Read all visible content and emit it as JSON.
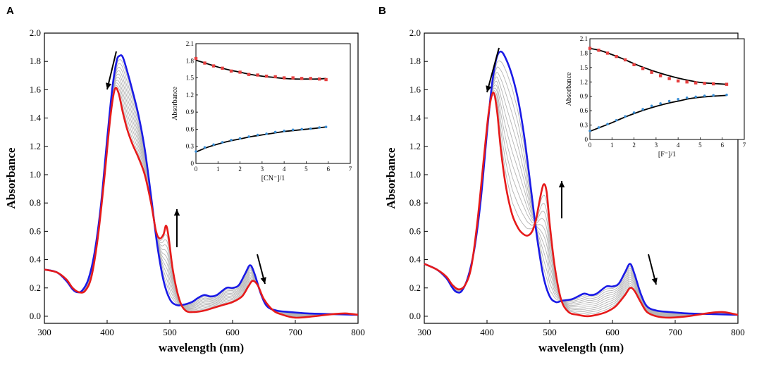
{
  "chart_data": [
    {
      "panel_label": "A",
      "type": "line",
      "xlabel": "wavelength (nm)",
      "ylabel": "Absorbance",
      "xlim": [
        300,
        800
      ],
      "ylim": [
        -0.05,
        2.0
      ],
      "xticks": [
        "300",
        "400",
        "500",
        "600",
        "700",
        "800"
      ],
      "yticks": [
        "0.0",
        "0.2",
        "0.4",
        "0.6",
        "0.8",
        "1.0",
        "1.2",
        "1.4",
        "1.6",
        "1.8",
        "2.0"
      ],
      "colors": {
        "start": "#1a1ae6",
        "end": "#e61a1a",
        "intermediate": "#b4b4b4"
      },
      "intermediate_count": 10,
      "series": [
        {
          "name": "start",
          "x": [
            300,
            320,
            335,
            345,
            352,
            360,
            370,
            380,
            390,
            400,
            408,
            415,
            420,
            425,
            432,
            440,
            450,
            460,
            470,
            480,
            490,
            500,
            510,
            520,
            535,
            545,
            555,
            565,
            575,
            590,
            600,
            610,
            620,
            628,
            635,
            645,
            655,
            670,
            690,
            720,
            760,
            800
          ],
          "y": [
            0.33,
            0.31,
            0.25,
            0.19,
            0.17,
            0.18,
            0.26,
            0.45,
            0.78,
            1.25,
            1.6,
            1.8,
            1.84,
            1.83,
            1.73,
            1.6,
            1.42,
            1.18,
            0.85,
            0.5,
            0.25,
            0.12,
            0.08,
            0.08,
            0.1,
            0.13,
            0.15,
            0.14,
            0.15,
            0.2,
            0.2,
            0.22,
            0.3,
            0.36,
            0.3,
            0.16,
            0.07,
            0.04,
            0.03,
            0.02,
            0.015,
            0.01
          ]
        },
        {
          "name": "end",
          "x": [
            300,
            320,
            335,
            345,
            355,
            365,
            375,
            385,
            395,
            405,
            412,
            418,
            425,
            432,
            440,
            450,
            460,
            470,
            478,
            484,
            490,
            494,
            498,
            505,
            515,
            525,
            540,
            555,
            570,
            585,
            600,
            615,
            625,
            632,
            640,
            650,
            665,
            680,
            700,
            730,
            760,
            780,
            800
          ],
          "y": [
            0.33,
            0.31,
            0.26,
            0.2,
            0.17,
            0.18,
            0.28,
            0.55,
            0.95,
            1.4,
            1.6,
            1.58,
            1.44,
            1.32,
            1.22,
            1.12,
            1.0,
            0.8,
            0.6,
            0.55,
            0.58,
            0.64,
            0.56,
            0.32,
            0.12,
            0.04,
            0.03,
            0.04,
            0.06,
            0.08,
            0.1,
            0.14,
            0.21,
            0.25,
            0.22,
            0.12,
            0.04,
            0.01,
            -0.01,
            0.0,
            0.015,
            0.02,
            0.01
          ]
        }
      ],
      "annotations": [
        {
          "label": "decrease",
          "at_x": 415,
          "at_y": 1.63
        },
        {
          "label": "increase",
          "at_x": 505,
          "at_y": 0.54
        },
        {
          "label": "decrease",
          "at_x": 638,
          "at_y": 0.39
        }
      ],
      "inset": {
        "type": "scatter",
        "xlabel": "[CN⁻]/1",
        "ylabel": "Absorbance",
        "xlim": [
          0,
          7
        ],
        "ylim": [
          0,
          2.1
        ],
        "xticks": [
          "0",
          "1",
          "2",
          "3",
          "4",
          "5",
          "6",
          "7"
        ],
        "yticks": [
          "0",
          "0.3",
          "0.6",
          "0.9",
          "1.2",
          "1.5",
          "1.8",
          "2.1"
        ],
        "series": [
          {
            "name": "decay",
            "color": "#e64040",
            "x": [
              0,
              0.4,
              0.8,
              1.2,
              1.6,
              2.0,
              2.4,
              2.8,
              3.2,
              3.6,
              4.0,
              4.4,
              4.8,
              5.2,
              5.6,
              5.9
            ],
            "y": [
              1.84,
              1.76,
              1.71,
              1.67,
              1.62,
              1.6,
              1.56,
              1.55,
              1.53,
              1.52,
              1.5,
              1.5,
              1.49,
              1.49,
              1.48,
              1.47
            ],
            "fit": {
              "x": [
                0,
                0.5,
                1,
                1.5,
                2,
                2.5,
                3,
                3.5,
                4,
                4.5,
                5,
                5.5,
                5.9
              ],
              "y": [
                1.81,
                1.75,
                1.69,
                1.64,
                1.6,
                1.56,
                1.53,
                1.51,
                1.49,
                1.48,
                1.48,
                1.48,
                1.49
              ]
            }
          },
          {
            "name": "growth",
            "color": "#3a8fd6",
            "x": [
              0,
              0.4,
              0.8,
              1.2,
              1.6,
              2.0,
              2.4,
              2.8,
              3.2,
              3.6,
              4.0,
              4.4,
              4.8,
              5.2,
              5.6,
              5.9
            ],
            "y": [
              0.21,
              0.28,
              0.33,
              0.37,
              0.41,
              0.44,
              0.47,
              0.5,
              0.52,
              0.55,
              0.57,
              0.59,
              0.6,
              0.61,
              0.63,
              0.64
            ],
            "fit": {
              "x": [
                0,
                0.5,
                1,
                1.5,
                2,
                2.5,
                3,
                3.5,
                4,
                4.5,
                5,
                5.5,
                5.9
              ],
              "y": [
                0.2,
                0.28,
                0.34,
                0.39,
                0.43,
                0.47,
                0.5,
                0.53,
                0.56,
                0.58,
                0.6,
                0.62,
                0.64
              ]
            }
          }
        ]
      }
    },
    {
      "panel_label": "B",
      "type": "line",
      "xlabel": "wavelength (nm)",
      "ylabel": "Absorbance",
      "xlim": [
        300,
        800
      ],
      "ylim": [
        -0.05,
        2.0
      ],
      "xticks": [
        "300",
        "400",
        "500",
        "600",
        "700",
        "800"
      ],
      "yticks": [
        "0.0",
        "0.2",
        "0.4",
        "0.6",
        "0.8",
        "1.0",
        "1.2",
        "1.4",
        "1.6",
        "1.8",
        "2.0"
      ],
      "colors": {
        "start": "#1a1ae6",
        "end": "#e61a1a",
        "intermediate": "#b4b4b4"
      },
      "intermediate_count": 10,
      "series": [
        {
          "name": "start",
          "x": [
            300,
            320,
            335,
            345,
            352,
            360,
            370,
            380,
            390,
            400,
            408,
            415,
            422,
            430,
            440,
            450,
            460,
            470,
            480,
            490,
            500,
            510,
            520,
            535,
            545,
            555,
            565,
            575,
            590,
            600,
            610,
            620,
            628,
            635,
            645,
            655,
            670,
            690,
            720,
            760,
            800
          ],
          "y": [
            0.37,
            0.33,
            0.27,
            0.2,
            0.17,
            0.18,
            0.28,
            0.48,
            0.82,
            1.3,
            1.64,
            1.82,
            1.87,
            1.82,
            1.7,
            1.52,
            1.25,
            0.9,
            0.55,
            0.28,
            0.14,
            0.1,
            0.11,
            0.12,
            0.14,
            0.16,
            0.15,
            0.16,
            0.21,
            0.21,
            0.23,
            0.31,
            0.37,
            0.3,
            0.16,
            0.07,
            0.04,
            0.03,
            0.02,
            0.015,
            0.01
          ]
        },
        {
          "name": "end",
          "x": [
            300,
            320,
            335,
            345,
            355,
            365,
            375,
            385,
            395,
            403,
            410,
            416,
            422,
            430,
            440,
            450,
            458,
            465,
            472,
            478,
            484,
            490,
            495,
            500,
            508,
            518,
            530,
            545,
            560,
            575,
            590,
            605,
            620,
            628,
            635,
            645,
            655,
            670,
            690,
            720,
            750,
            775,
            800
          ],
          "y": [
            0.37,
            0.33,
            0.28,
            0.22,
            0.19,
            0.22,
            0.35,
            0.68,
            1.12,
            1.45,
            1.58,
            1.45,
            1.18,
            0.92,
            0.72,
            0.62,
            0.58,
            0.57,
            0.6,
            0.68,
            0.82,
            0.93,
            0.88,
            0.65,
            0.35,
            0.12,
            0.03,
            0.01,
            0.0,
            0.01,
            0.03,
            0.07,
            0.15,
            0.2,
            0.18,
            0.1,
            0.03,
            0.0,
            -0.01,
            0.0,
            0.02,
            0.03,
            0.01
          ]
        }
      ],
      "annotations": [
        {
          "label": "decrease",
          "at_x": 410,
          "at_y": 1.68
        },
        {
          "label": "increase",
          "at_x": 505,
          "at_y": 0.9
        },
        {
          "label": "decrease",
          "at_x": 640,
          "at_y": 0.38
        }
      ],
      "inset": {
        "type": "scatter",
        "xlabel": "[F⁻]/1",
        "ylabel": "Absorbance",
        "xlim": [
          0,
          7
        ],
        "ylim": [
          0,
          2.1
        ],
        "xticks": [
          "0",
          "1",
          "2",
          "3",
          "4",
          "5",
          "6",
          "7"
        ],
        "yticks": [
          "0",
          "0.3",
          "0.6",
          "0.9",
          "1.2",
          "1.5",
          "1.8",
          "2.1"
        ],
        "series": [
          {
            "name": "decay",
            "color": "#e64040",
            "x": [
              0,
              0.4,
              0.8,
              1.2,
              1.6,
              2.0,
              2.4,
              2.8,
              3.2,
              3.6,
              4.0,
              4.4,
              4.8,
              5.2,
              5.6,
              6.2
            ],
            "y": [
              1.9,
              1.86,
              1.8,
              1.73,
              1.66,
              1.56,
              1.48,
              1.4,
              1.33,
              1.27,
              1.22,
              1.2,
              1.18,
              1.17,
              1.16,
              1.15
            ],
            "fit": {
              "x": [
                0,
                0.5,
                1,
                1.5,
                2,
                2.5,
                3,
                3.5,
                4,
                4.5,
                5,
                5.5,
                6.2
              ],
              "y": [
                1.9,
                1.85,
                1.77,
                1.68,
                1.58,
                1.49,
                1.41,
                1.34,
                1.28,
                1.23,
                1.19,
                1.17,
                1.15
              ]
            }
          },
          {
            "name": "growth",
            "color": "#3a8fd6",
            "x": [
              0,
              0.4,
              0.8,
              1.2,
              1.6,
              2.0,
              2.4,
              2.8,
              3.2,
              3.6,
              4.0,
              4.4,
              4.8,
              5.2,
              5.6,
              6.2
            ],
            "y": [
              0.18,
              0.25,
              0.32,
              0.4,
              0.48,
              0.56,
              0.63,
              0.7,
              0.75,
              0.8,
              0.84,
              0.87,
              0.89,
              0.91,
              0.92,
              0.93
            ],
            "fit": {
              "x": [
                0,
                0.5,
                1,
                1.5,
                2,
                2.5,
                3,
                3.5,
                4,
                4.5,
                5,
                5.5,
                6.2
              ],
              "y": [
                0.17,
                0.26,
                0.35,
                0.45,
                0.54,
                0.62,
                0.69,
                0.75,
                0.8,
                0.85,
                0.88,
                0.9,
                0.92
              ]
            }
          }
        ]
      }
    }
  ]
}
